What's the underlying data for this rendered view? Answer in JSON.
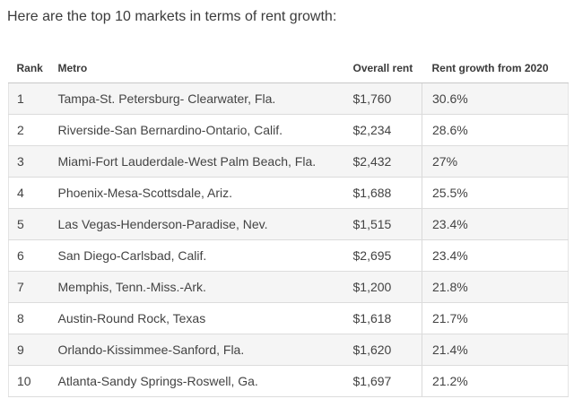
{
  "chart_data": {
    "type": "table",
    "title": "Here are the top 10 markets in terms of rent growth:",
    "columns": [
      "Rank",
      "Metro",
      "Overall rent",
      "Rent growth from 2020"
    ],
    "rows": [
      {
        "rank": "1",
        "metro": "Tampa-St. Petersburg- Clearwater, Fla.",
        "overall_rent": "$1,760",
        "rent_growth": "30.6%"
      },
      {
        "rank": "2",
        "metro": "Riverside-San Bernardino-Ontario, Calif.",
        "overall_rent": "$2,234",
        "rent_growth": "28.6%"
      },
      {
        "rank": "3",
        "metro": "Miami-Fort Lauderdale-West Palm Beach, Fla.",
        "overall_rent": "$2,432",
        "rent_growth": "27%"
      },
      {
        "rank": "4",
        "metro": "Phoenix-Mesa-Scottsdale, Ariz.",
        "overall_rent": "$1,688",
        "rent_growth": "25.5%"
      },
      {
        "rank": "5",
        "metro": "Las Vegas-Henderson-Paradise, Nev.",
        "overall_rent": "$1,515",
        "rent_growth": "23.4%"
      },
      {
        "rank": "6",
        "metro": "San Diego-Carlsbad, Calif.",
        "overall_rent": "$2,695",
        "rent_growth": "23.4%"
      },
      {
        "rank": "7",
        "metro": "Memphis, Tenn.-Miss.-Ark.",
        "overall_rent": "$1,200",
        "rent_growth": "21.8%"
      },
      {
        "rank": "8",
        "metro": "Austin-Round Rock, Texas",
        "overall_rent": "$1,618",
        "rent_growth": "21.7%"
      },
      {
        "rank": "9",
        "metro": "Orlando-Kissimmee-Sanford, Fla.",
        "overall_rent": "$1,620",
        "rent_growth": "21.4%"
      },
      {
        "rank": "10",
        "metro": "Atlanta-Sandy Springs-Roswell, Ga.",
        "overall_rent": "$1,697",
        "rent_growth": "21.2%"
      }
    ],
    "layout": {
      "legend": "none",
      "grid": "horizontal-row-rules",
      "striped_rows": true
    }
  },
  "colors": {
    "background": "#ffffff",
    "row_stripe": "#f5f5f5",
    "row_border": "#dcdcdc",
    "side_border": "#e4e4e4",
    "header_border": "#c8c8c8",
    "column_divider": "#d9d9d9",
    "body_text": "#434343",
    "heading_text": "#3b3b3b"
  }
}
